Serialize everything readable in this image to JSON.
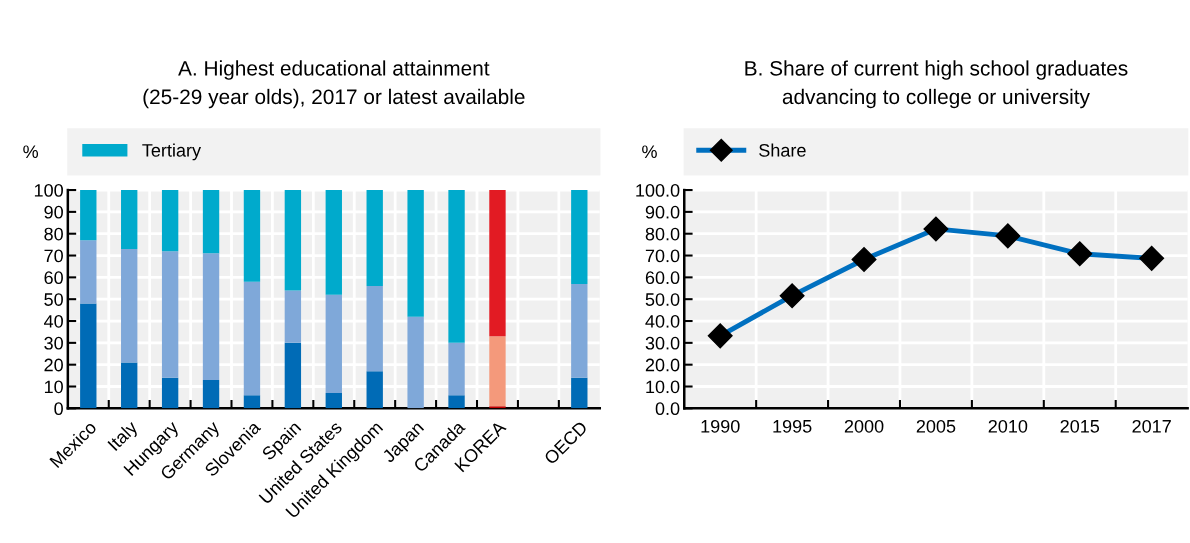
{
  "chart_data": [
    {
      "type": "bar",
      "title": "A. Highest educational attainment\n(25-29 year olds), 2017 or latest available",
      "ylabel": "%",
      "stacked": true,
      "legend": "top",
      "grid": true,
      "categories": [
        "Mexico",
        "Italy",
        "Hungary",
        "Germany",
        "Slovenia",
        "Spain",
        "United States",
        "United Kingdom",
        "Japan",
        "Canada",
        "KOREA",
        null,
        "OECD"
      ],
      "ylim": [
        0,
        100
      ],
      "yticks": [
        0,
        10,
        20,
        30,
        40,
        50,
        60,
        70,
        80,
        90,
        100
      ],
      "series": [
        {
          "colors": [
            "#006bb6",
            "#006bb6",
            "#006bb6",
            "#006bb6",
            "#006bb6",
            "#006bb6",
            "#006bb6",
            "#006bb6",
            "#006bb6",
            "#006bb6",
            "#c00000",
            "#006bb6",
            "#006bb6"
          ],
          "values": [
            48,
            21,
            14,
            13,
            6,
            30,
            7,
            17,
            0,
            6,
            1,
            null,
            14
          ]
        },
        {
          "colors": [
            "#7fa8d9",
            "#7fa8d9",
            "#7fa8d9",
            "#7fa8d9",
            "#7fa8d9",
            "#7fa8d9",
            "#7fa8d9",
            "#7fa8d9",
            "#7fa8d9",
            "#7fa8d9",
            "#f4997b",
            "#7fa8d9",
            "#7fa8d9"
          ],
          "values": [
            29,
            52,
            58,
            58,
            52,
            24,
            45,
            39,
            42,
            24,
            32,
            null,
            43
          ]
        },
        {
          "name": "Tertiary",
          "color": "#00aacc",
          "colors": [
            "#00aacc",
            "#00aacc",
            "#00aacc",
            "#00aacc",
            "#00aacc",
            "#00aacc",
            "#00aacc",
            "#00aacc",
            "#00aacc",
            "#00aacc",
            "#e21b23",
            "#00aacc",
            "#00aacc"
          ],
          "values": [
            23,
            27,
            28,
            29,
            42,
            46,
            48,
            44,
            58,
            70,
            67,
            null,
            43
          ]
        }
      ]
    },
    {
      "type": "line",
      "title": "B. Share of current high school graduates\nadvancing to college or university",
      "ylabel": "%",
      "legend": "top",
      "grid": true,
      "marker": "diamond",
      "line_style": "solid",
      "categories": [
        "1990",
        "1995",
        "2000",
        "2005",
        "2010",
        "2015",
        "2017"
      ],
      "ylim": [
        0,
        100
      ],
      "yticks": [
        {
          "value": 0,
          "label": "0.0"
        },
        {
          "value": 10,
          "label": "10.0"
        },
        {
          "value": 20,
          "label": "20.0"
        },
        {
          "value": 30,
          "label": "30.0"
        },
        {
          "value": 40,
          "label": "40.0"
        },
        {
          "value": 50,
          "label": "50.0"
        },
        {
          "value": 60,
          "label": "60.0"
        },
        {
          "value": 70,
          "label": "70.0"
        },
        {
          "value": 80,
          "label": "80.0"
        },
        {
          "value": 90,
          "label": "90.0"
        },
        {
          "value": 100,
          "label": "100.0"
        }
      ],
      "series": [
        {
          "name": "Share",
          "color": "#0070c0",
          "values": [
            33.2,
            51.6,
            68.2,
            82.2,
            79.0,
            70.8,
            68.7
          ]
        }
      ]
    }
  ]
}
